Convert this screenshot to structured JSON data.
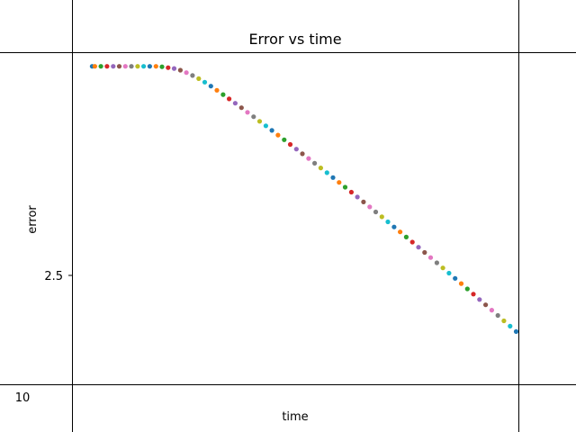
{
  "chart_data": {
    "type": "scatter",
    "title": "Error vs time",
    "xlabel": "time",
    "ylabel": "error",
    "xlim": [
      10,
      47.7
    ],
    "ylim": [
      1.5,
      4.55
    ],
    "xticks": [
      {
        "value": 10,
        "label": "10"
      }
    ],
    "yticks": [
      {
        "value": 2.5,
        "label": "2.5"
      }
    ],
    "grid": false,
    "colors": [
      "#1f77b4",
      "#ff7f0e",
      "#2ca02c",
      "#d62728",
      "#9467bd",
      "#8c564b",
      "#e377c2",
      "#7f7f7f",
      "#bcbd22",
      "#17becf"
    ],
    "points": [
      {
        "x": 11.7,
        "y": 4.42
      },
      {
        "x": 11.93,
        "y": 4.42
      },
      {
        "x": 12.44,
        "y": 4.42
      },
      {
        "x": 12.96,
        "y": 4.42
      },
      {
        "x": 13.48,
        "y": 4.42
      },
      {
        "x": 13.99,
        "y": 4.42
      },
      {
        "x": 14.51,
        "y": 4.42
      },
      {
        "x": 15.02,
        "y": 4.42
      },
      {
        "x": 15.54,
        "y": 4.42
      },
      {
        "x": 16.05,
        "y": 4.42
      },
      {
        "x": 16.57,
        "y": 4.42
      },
      {
        "x": 17.09,
        "y": 4.42
      },
      {
        "x": 17.6,
        "y": 4.416
      },
      {
        "x": 18.12,
        "y": 4.408
      },
      {
        "x": 18.63,
        "y": 4.4
      },
      {
        "x": 19.15,
        "y": 4.385
      },
      {
        "x": 19.66,
        "y": 4.362
      },
      {
        "x": 20.18,
        "y": 4.336
      },
      {
        "x": 20.7,
        "y": 4.307
      },
      {
        "x": 21.21,
        "y": 4.275
      },
      {
        "x": 21.73,
        "y": 4.238
      },
      {
        "x": 22.24,
        "y": 4.2
      },
      {
        "x": 22.76,
        "y": 4.161
      },
      {
        "x": 23.27,
        "y": 4.121
      },
      {
        "x": 23.79,
        "y": 4.081
      },
      {
        "x": 24.31,
        "y": 4.04
      },
      {
        "x": 24.82,
        "y": 3.998
      },
      {
        "x": 25.34,
        "y": 3.957
      },
      {
        "x": 25.85,
        "y": 3.915
      },
      {
        "x": 26.37,
        "y": 3.874
      },
      {
        "x": 26.88,
        "y": 3.832
      },
      {
        "x": 27.4,
        "y": 3.789
      },
      {
        "x": 27.92,
        "y": 3.746
      },
      {
        "x": 28.43,
        "y": 3.703
      },
      {
        "x": 28.95,
        "y": 3.66
      },
      {
        "x": 29.46,
        "y": 3.617
      },
      {
        "x": 29.98,
        "y": 3.574
      },
      {
        "x": 30.49,
        "y": 3.53
      },
      {
        "x": 31.01,
        "y": 3.487
      },
      {
        "x": 31.53,
        "y": 3.443
      },
      {
        "x": 32.04,
        "y": 3.399
      },
      {
        "x": 32.56,
        "y": 3.354
      },
      {
        "x": 33.07,
        "y": 3.31
      },
      {
        "x": 33.59,
        "y": 3.265
      },
      {
        "x": 34.1,
        "y": 3.22
      },
      {
        "x": 34.62,
        "y": 3.175
      },
      {
        "x": 35.14,
        "y": 3.129
      },
      {
        "x": 35.65,
        "y": 3.083
      },
      {
        "x": 36.17,
        "y": 3.038
      },
      {
        "x": 36.68,
        "y": 2.992
      },
      {
        "x": 37.2,
        "y": 2.945
      },
      {
        "x": 37.71,
        "y": 2.899
      },
      {
        "x": 38.23,
        "y": 2.852
      },
      {
        "x": 38.75,
        "y": 2.806
      },
      {
        "x": 39.26,
        "y": 2.759
      },
      {
        "x": 39.78,
        "y": 2.711
      },
      {
        "x": 40.29,
        "y": 2.664
      },
      {
        "x": 40.81,
        "y": 2.616
      },
      {
        "x": 41.32,
        "y": 2.569
      },
      {
        "x": 41.84,
        "y": 2.521
      },
      {
        "x": 42.36,
        "y": 2.473
      },
      {
        "x": 42.87,
        "y": 2.425
      },
      {
        "x": 43.39,
        "y": 2.376
      },
      {
        "x": 43.9,
        "y": 2.328
      },
      {
        "x": 44.42,
        "y": 2.279
      },
      {
        "x": 44.93,
        "y": 2.23
      },
      {
        "x": 45.45,
        "y": 2.181
      },
      {
        "x": 45.97,
        "y": 2.132
      },
      {
        "x": 46.48,
        "y": 2.083
      },
      {
        "x": 47.0,
        "y": 2.034
      },
      {
        "x": 47.51,
        "y": 1.984
      }
    ]
  }
}
